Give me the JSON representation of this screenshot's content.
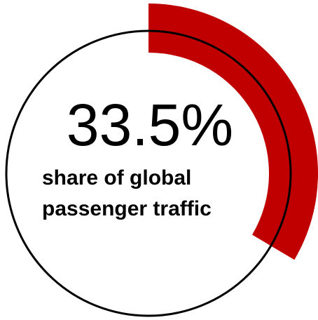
{
  "chart_data": {
    "type": "donut",
    "values": [
      33.5
    ],
    "value_labels": [
      "33.5%"
    ],
    "color": "#c00000",
    "label": [
      "share of global",
      "passenger traffic"
    ]
  }
}
